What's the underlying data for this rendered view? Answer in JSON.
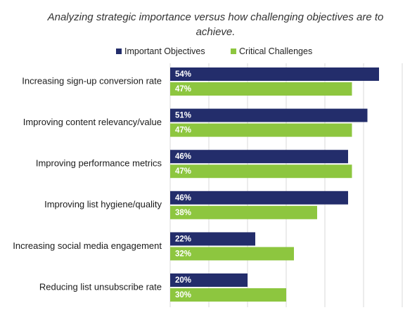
{
  "chart_data": {
    "type": "bar",
    "orientation": "horizontal",
    "title": "Analyzing strategic importance versus how challenging objectives are to achieve.",
    "categories": [
      "Increasing sign-up conversion rate",
      "Improving content relevancy/value",
      "Improving performance metrics",
      "Improving list hygiene/quality",
      "Increasing social media engagement",
      "Reducing list unsubscribe rate"
    ],
    "series": [
      {
        "name": "Important Objectives",
        "values": [
          54,
          51,
          46,
          46,
          22,
          20
        ],
        "color": "#232d6b"
      },
      {
        "name": "Critical Challenges",
        "values": [
          47,
          47,
          47,
          38,
          32,
          30
        ],
        "color": "#8dc63f"
      }
    ],
    "value_suffix": "%",
    "xlim": [
      0,
      60
    ],
    "grid": true,
    "legend_position": "top"
  }
}
